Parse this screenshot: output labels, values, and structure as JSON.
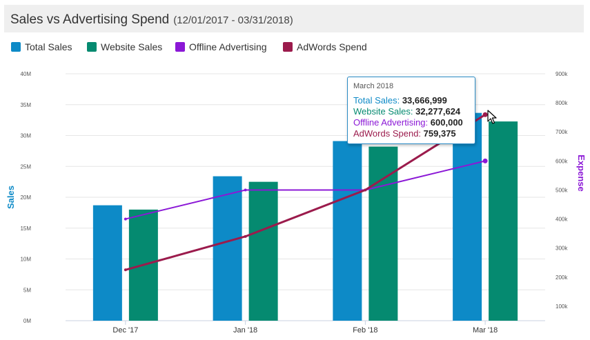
{
  "header": {
    "title": "Sales vs Advertising Spend",
    "subtitle": "(12/01/2017 - 03/31/2018)"
  },
  "legend": [
    {
      "label": "Total Sales",
      "color": "#0d8ac7"
    },
    {
      "label": "Website Sales",
      "color": "#058a70"
    },
    {
      "label": "Offline Advertising",
      "color": "#8b18d6"
    },
    {
      "label": "AdWords Spend",
      "color": "#9b1b4c"
    }
  ],
  "tooltip": {
    "date": "March 2018",
    "rows": [
      {
        "label": "Total Sales:",
        "value": "33,666,999",
        "color": "#0d8ac7"
      },
      {
        "label": "Website Sales:",
        "value": "32,277,624",
        "color": "#058a70"
      },
      {
        "label": "Offline Advertising:",
        "value": "600,000",
        "color": "#8b18d6"
      },
      {
        "label": "AdWords Spend:",
        "value": "759,375",
        "color": "#9b1b4c"
      }
    ]
  },
  "chart_data": {
    "type": "bar",
    "categories": [
      "Dec '17",
      "Jan '18",
      "Feb '18",
      "Mar '18"
    ],
    "series": [
      {
        "name": "Total Sales",
        "kind": "bar",
        "axis": "left",
        "color": "#0d8ac7",
        "values": [
          18700000,
          23400000,
          29100000,
          33666999
        ]
      },
      {
        "name": "Website Sales",
        "kind": "bar",
        "axis": "left",
        "color": "#058a70",
        "values": [
          18000000,
          22500000,
          28200000,
          32277624
        ]
      },
      {
        "name": "Offline Advertising",
        "kind": "line",
        "axis": "right",
        "color": "#8b18d6",
        "values": [
          400000,
          500000,
          500000,
          600000
        ]
      },
      {
        "name": "AdWords Spend",
        "kind": "line",
        "axis": "right",
        "color": "#9b1b4c",
        "values": [
          225000,
          340000,
          500000,
          759375
        ]
      }
    ],
    "ylabel": "Sales",
    "y2label": "Expense",
    "ylim": [
      0,
      40000000
    ],
    "y2lim": [
      50000,
      900000
    ],
    "yticks": [
      {
        "value": 0,
        "label": "0M"
      },
      {
        "value": 5000000,
        "label": "5M"
      },
      {
        "value": 10000000,
        "label": "10M"
      },
      {
        "value": 15000000,
        "label": "15M"
      },
      {
        "value": 20000000,
        "label": "20M"
      },
      {
        "value": 25000000,
        "label": "25M"
      },
      {
        "value": 30000000,
        "label": "30M"
      },
      {
        "value": 35000000,
        "label": "35M"
      },
      {
        "value": 40000000,
        "label": "40M"
      }
    ],
    "y2ticks": [
      {
        "value": 100000,
        "label": "100k"
      },
      {
        "value": 200000,
        "label": "200k"
      },
      {
        "value": 300000,
        "label": "300k"
      },
      {
        "value": 400000,
        "label": "400k"
      },
      {
        "value": 500000,
        "label": "500k"
      },
      {
        "value": 600000,
        "label": "600k"
      },
      {
        "value": 700000,
        "label": "700k"
      },
      {
        "value": 800000,
        "label": "800k"
      },
      {
        "value": 900000,
        "label": "900k"
      }
    ],
    "grid": true,
    "legend_position": "top-left"
  }
}
